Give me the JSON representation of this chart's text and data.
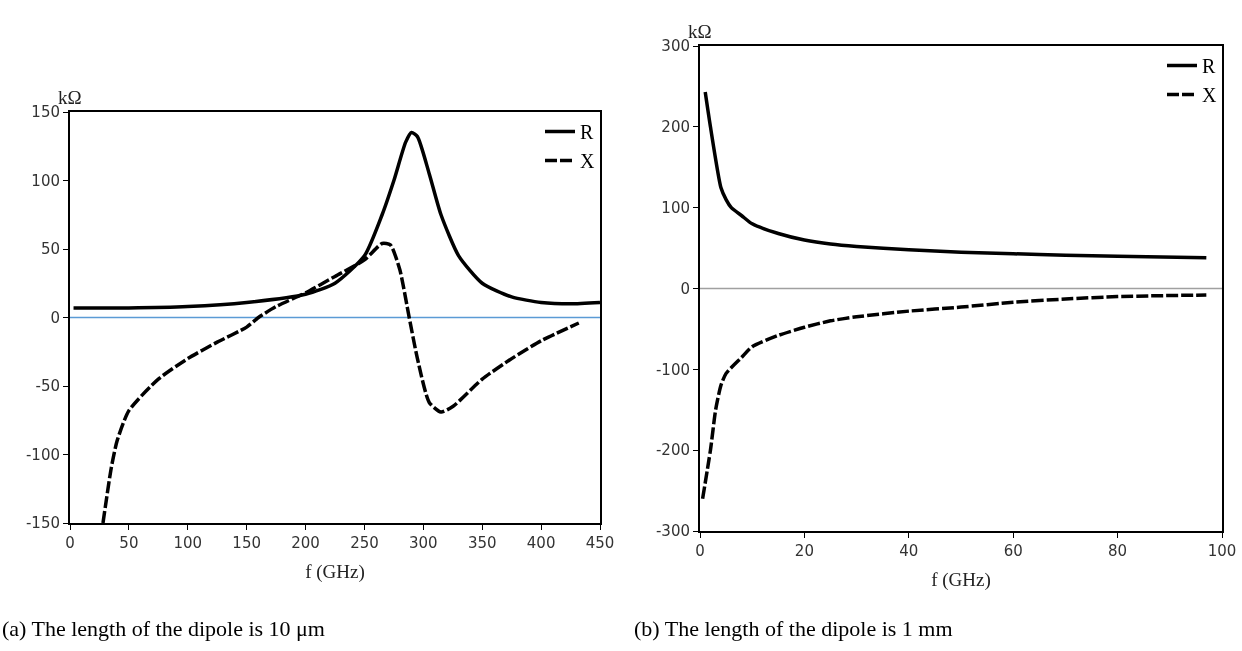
{
  "chart_data": [
    {
      "type": "line",
      "ylabel": "kΩ",
      "xlabel": "f (GHz)",
      "xlim": [
        0,
        450
      ],
      "xticks": [
        0,
        50,
        100,
        150,
        200,
        250,
        300,
        350,
        400,
        450
      ],
      "ylim": [
        -150,
        150
      ],
      "yticks": [
        -150,
        -100,
        -50,
        0,
        50,
        100,
        150
      ],
      "grid": false,
      "legend": "top right",
      "marker": "none",
      "series": [
        {
          "name": "R",
          "color": "#000000",
          "line_style": "solid",
          "x": [
            3,
            50,
            100,
            150,
            200,
            225,
            250,
            265,
            275,
            285,
            290,
            295,
            305,
            315,
            330,
            350,
            375,
            400,
            425,
            450
          ],
          "values": [
            7,
            7,
            8,
            11,
            17,
            25,
            45,
            75,
            100,
            128,
            135,
            132,
            105,
            75,
            45,
            25,
            15,
            11,
            10,
            11
          ]
        },
        {
          "name": "X",
          "color": "#000000",
          "line_style": "dashed",
          "x": [
            28,
            35,
            40,
            50,
            75,
            100,
            125,
            150,
            160,
            175,
            200,
            225,
            250,
            265,
            272,
            280,
            288,
            295,
            305,
            315,
            325,
            350,
            375,
            400,
            432
          ],
          "values": [
            -150,
            -110,
            -90,
            -68,
            -45,
            -30,
            -18,
            -7,
            0,
            8,
            18,
            30,
            42,
            54,
            53,
            35,
            0,
            -30,
            -62,
            -69,
            -65,
            -45,
            -30,
            -17,
            -4
          ]
        }
      ],
      "ref_lines": [
        {
          "axis": "y",
          "value": 0,
          "color": "#5b9bd5"
        }
      ],
      "annotations": [
        "(a) The length of the dipole is 10 μm"
      ]
    },
    {
      "type": "line",
      "ylabel": "kΩ",
      "xlabel": "f (GHz)",
      "xlim": [
        0,
        100
      ],
      "xticks": [
        0,
        20,
        40,
        60,
        80,
        100
      ],
      "ylim": [
        -300,
        300
      ],
      "yticks": [
        -300,
        -200,
        -100,
        0,
        100,
        200,
        300
      ],
      "grid": false,
      "legend": "top right",
      "marker": "none",
      "series": [
        {
          "name": "R",
          "color": "#000000",
          "line_style": "solid",
          "x": [
            1,
            2,
            4,
            5,
            6,
            8,
            10,
            15,
            20,
            25,
            30,
            40,
            50,
            60,
            70,
            80,
            97
          ],
          "values": [
            243,
            200,
            125,
            110,
            100,
            90,
            80,
            68,
            60,
            55,
            52,
            48,
            45,
            43,
            41,
            40,
            38
          ]
        },
        {
          "name": "X",
          "color": "#000000",
          "line_style": "dashed",
          "x": [
            0.5,
            2,
            3,
            4,
            5,
            8,
            10,
            15,
            20,
            25,
            30,
            40,
            50,
            60,
            70,
            80,
            97
          ],
          "values": [
            -260,
            -200,
            -150,
            -120,
            -105,
            -85,
            -72,
            -58,
            -48,
            -40,
            -35,
            -28,
            -23,
            -17,
            -13,
            -10,
            -8
          ]
        }
      ],
      "ref_lines": [
        {
          "axis": "y",
          "value": 0,
          "color": "#a0a0a0"
        }
      ],
      "annotations": [
        "(b) The length of the dipole is 1 mm"
      ]
    }
  ]
}
